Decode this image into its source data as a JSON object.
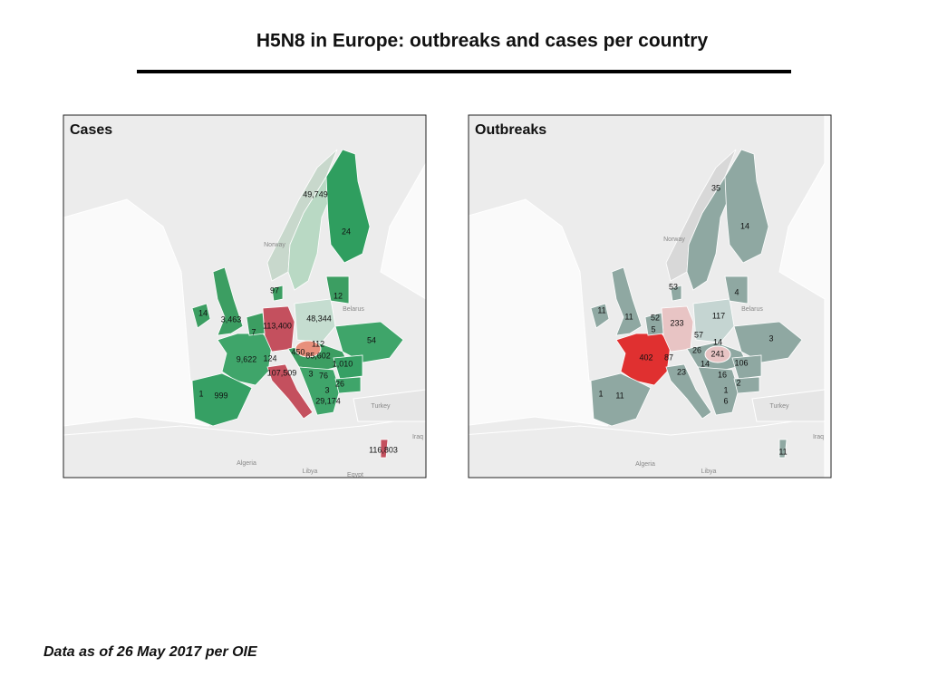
{
  "header": {
    "title": "H5N8 in Europe: outbreaks and cases per country"
  },
  "maps": [
    {
      "title": "Cases",
      "labels": [
        "49,749",
        "24",
        "97",
        "12",
        "14",
        "3,463",
        "113,400",
        "48,344",
        "7",
        "54",
        "112",
        "450",
        "85,602",
        "9,622",
        "124",
        "1,010",
        "107,509",
        "3",
        "76",
        "26",
        "3",
        "1",
        "999",
        "29,174",
        "116,803"
      ],
      "basemap_labels": [
        "Norway",
        "Belarus",
        "Turkey",
        "Algeria",
        "Libya",
        "Egypt",
        "Iraq"
      ]
    },
    {
      "title": "Outbreaks",
      "labels": [
        "35",
        "14",
        "53",
        "4",
        "11",
        "11",
        "52",
        "117",
        "233",
        "5",
        "57",
        "3",
        "14",
        "26",
        "241",
        "402",
        "87",
        "14",
        "106",
        "23",
        "16",
        "2",
        "1",
        "11",
        "1",
        "6",
        "11"
      ],
      "basemap_labels": [
        "Norway",
        "Belarus",
        "Turkey",
        "Algeria",
        "Libya",
        "Iraq"
      ]
    }
  ],
  "footer": {
    "note": "Data as of 26 May 2017 per OIE"
  }
}
